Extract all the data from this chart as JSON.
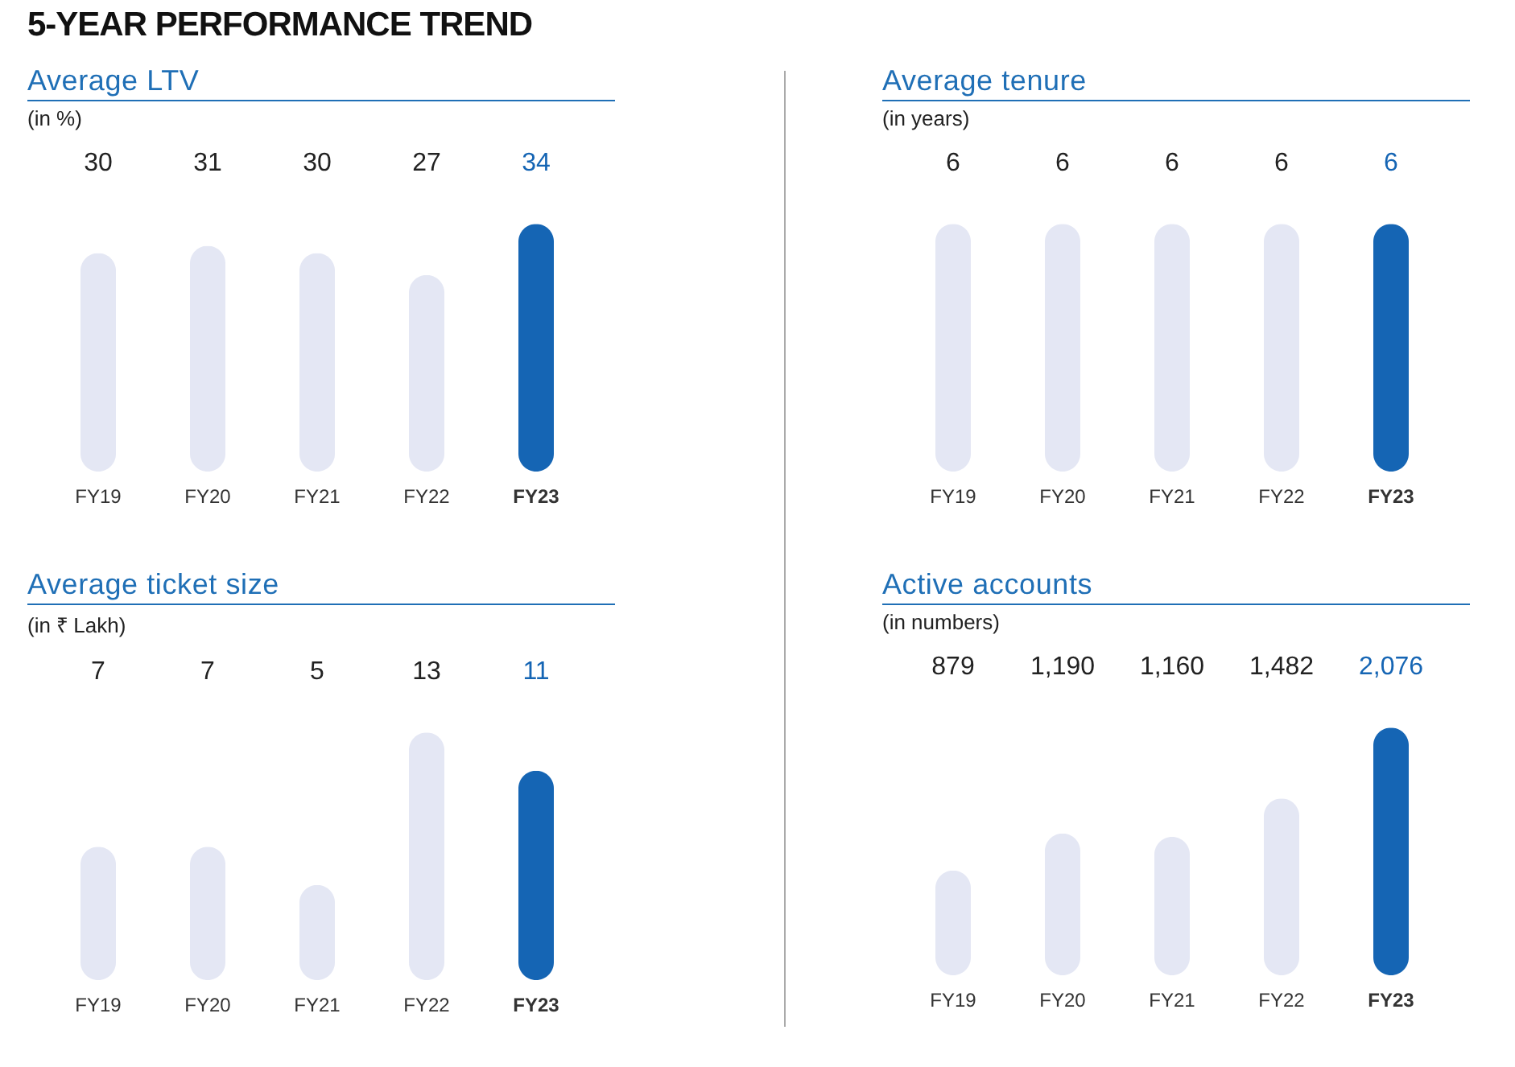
{
  "chart_data": [
    {
      "type": "bar",
      "title": "Average LTV",
      "subtitle": "(in %)",
      "annotations": [
        "5-YEAR PERFORMANCE TREND"
      ],
      "categories": [
        "FY19",
        "FY20",
        "FY21",
        "FY22",
        "FY23"
      ],
      "values": [
        30,
        31,
        30,
        27,
        34
      ],
      "colors": [
        "#e4e7f4",
        "#e4e7f4",
        "#e4e7f4",
        "#e4e7f4",
        "#1565b4"
      ],
      "data_labels": true
    },
    {
      "type": "bar",
      "title": "Average tenure",
      "subtitle": "(in years)",
      "categories": [
        "FY19",
        "FY20",
        "FY21",
        "FY22",
        "FY23"
      ],
      "values": [
        6,
        6,
        6,
        6,
        6
      ],
      "colors": [
        "#e4e7f4",
        "#e4e7f4",
        "#e4e7f4",
        "#e4e7f4",
        "#1565b4"
      ],
      "data_labels": true
    },
    {
      "type": "bar",
      "title": "Average ticket size",
      "subtitle": "(in ₹ Lakh)",
      "categories": [
        "FY19",
        "FY20",
        "FY21",
        "FY22",
        "FY23"
      ],
      "values": [
        7,
        7,
        5,
        13,
        11
      ],
      "colors": [
        "#e4e7f4",
        "#e4e7f4",
        "#e4e7f4",
        "#e4e7f4",
        "#1565b4"
      ],
      "data_labels": true
    },
    {
      "type": "bar",
      "title": "Active accounts",
      "subtitle": "(in numbers)",
      "categories": [
        "FY19",
        "FY20",
        "FY21",
        "FY22",
        "FY23"
      ],
      "values": [
        879,
        1190,
        1160,
        1482,
        2076
      ],
      "value_labels": [
        "879",
        "1,190",
        "1,160",
        "1,482",
        "2,076"
      ],
      "colors": [
        "#e4e7f4",
        "#e4e7f4",
        "#e4e7f4",
        "#e4e7f4",
        "#1565b4"
      ]
    }
  ]
}
